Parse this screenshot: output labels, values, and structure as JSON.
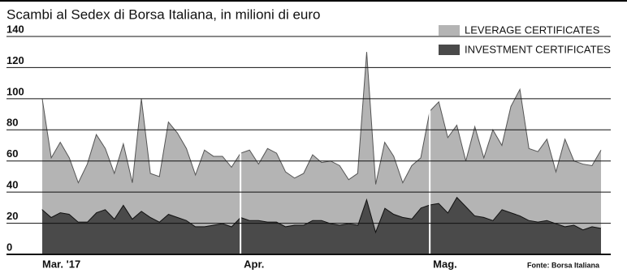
{
  "chart_data": {
    "type": "stacked-area",
    "title": "Scambi al Sedex di Borsa Italiana, in milioni di euro",
    "source": "Fonte: Borsa Italiana",
    "categories": [
      "Mar. '17",
      null,
      null,
      null,
      null,
      null,
      null,
      null,
      null,
      null,
      null,
      null,
      null,
      null,
      null,
      null,
      null,
      null,
      null,
      null,
      null,
      null,
      "Apr.",
      null,
      null,
      null,
      null,
      null,
      null,
      null,
      null,
      null,
      null,
      null,
      null,
      null,
      null,
      null,
      null,
      null,
      null,
      null,
      null,
      "Mag.",
      null,
      null,
      null,
      null,
      null,
      null,
      null,
      null,
      null,
      null,
      null,
      null,
      null,
      null,
      null,
      null,
      null,
      null,
      null
    ],
    "series": [
      {
        "name": "LEVERAGE CERTIFICATES",
        "color": "#b4b4b4",
        "values": [
          71,
          38,
          45,
          36,
          25,
          37,
          50,
          39,
          29,
          39,
          23,
          72,
          28,
          29,
          59,
          54,
          46,
          33,
          49,
          44,
          43,
          38,
          41,
          45,
          36,
          47,
          44,
          35,
          30,
          33,
          42,
          37,
          40,
          38,
          28,
          33,
          94,
          30,
          42,
          37,
          22,
          34,
          32,
          60,
          65,
          48,
          46,
          29,
          57,
          38,
          58,
          41,
          68,
          81,
          46,
          45,
          52,
          33,
          56,
          41,
          42,
          39,
          50
        ]
      },
      {
        "name": "INVESTMENT CERTIFICATES",
        "color": "#4a4a4a",
        "values": [
          29,
          24,
          27,
          26,
          21,
          21,
          27,
          29,
          23,
          32,
          23,
          28,
          24,
          21,
          26,
          24,
          22,
          18,
          18,
          19,
          20,
          18,
          24,
          22,
          22,
          21,
          21,
          18,
          19,
          19,
          22,
          22,
          20,
          19,
          20,
          19,
          36,
          15,
          30,
          26,
          24,
          23,
          30,
          32,
          33,
          27,
          37,
          31,
          25,
          24,
          22,
          29,
          27,
          25,
          22,
          21,
          22,
          20,
          18,
          19,
          16,
          18,
          17
        ]
      }
    ],
    "ylim": [
      0,
      140
    ],
    "yticks": [
      0,
      20,
      40,
      60,
      80,
      100,
      120,
      140
    ],
    "grid": true
  }
}
